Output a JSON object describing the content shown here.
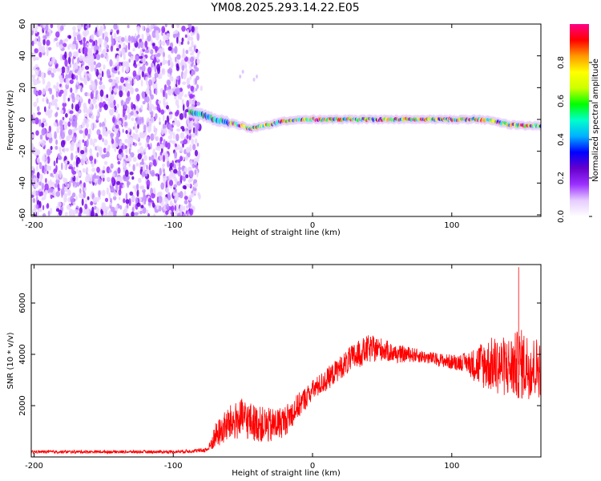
{
  "title": "YM08.2025.293.14.22.E05",
  "colors": {
    "axis": "#000000",
    "snr_line": "#ff0000",
    "background": "#ffffff"
  },
  "chart_data": [
    {
      "type": "heatmap",
      "name": "spectrogram",
      "xlabel": "Height of straight line (km)",
      "ylabel": "Frequency (Hz)",
      "xlim": [
        -202,
        164
      ],
      "ylim": [
        -61,
        60
      ],
      "xticks": [
        -200,
        -100,
        0,
        100
      ],
      "yticks": [
        60,
        40,
        20,
        0,
        -20,
        -40,
        -60
      ],
      "noise_region_x": [
        -202,
        -82
      ],
      "signal_track": {
        "x": [
          -88,
          -80,
          -70,
          -60,
          -50,
          -45,
          -40,
          -30,
          -20,
          -10,
          0,
          20,
          40,
          60,
          80,
          100,
          120,
          130,
          140,
          150,
          160,
          164
        ],
        "y": [
          5,
          3,
          0,
          -2,
          -4,
          -6,
          -5,
          -3,
          -1,
          0,
          0,
          0,
          0,
          0,
          0,
          0,
          0,
          -1,
          -3,
          -4,
          -4,
          -4
        ]
      },
      "colorbar": {
        "label": "Normalized spectral amplitude",
        "ticks": [
          "0.0",
          "0.2",
          "0.4",
          "0.6",
          "0.8"
        ],
        "tick_values": [
          0.0,
          0.2,
          0.4,
          0.6,
          0.8
        ],
        "range": [
          0,
          1
        ],
        "colors": [
          "#ffffff",
          "#e6ccff",
          "#9b30ff",
          "#6600cc",
          "#0000ff",
          "#00b0ff",
          "#00ffcc",
          "#00ff00",
          "#ccff00",
          "#ffff00",
          "#ff9900",
          "#ff0000",
          "#ff0088"
        ]
      }
    },
    {
      "type": "line",
      "name": "snr",
      "xlabel": "Height of straight line (km)",
      "ylabel": "SNR (10 * v/v)",
      "xlim": [
        -202,
        164
      ],
      "ylim": [
        0,
        7500
      ],
      "xticks": [
        -200,
        -100,
        0,
        100
      ],
      "yticks": [
        2000,
        4000,
        6000
      ],
      "envelope": {
        "x": [
          -202,
          -100,
          -80,
          -75,
          -70,
          -60,
          -50,
          -40,
          -30,
          -20,
          -10,
          0,
          10,
          20,
          30,
          40,
          50,
          60,
          70,
          80,
          90,
          100,
          110,
          115,
          120,
          130,
          140,
          150,
          160,
          164
        ],
        "mean": [
          200,
          200,
          250,
          300,
          800,
          1300,
          1500,
          1300,
          1200,
          1400,
          2000,
          2600,
          3000,
          3500,
          3900,
          4200,
          4200,
          4000,
          4000,
          3900,
          3800,
          3700,
          3700,
          3600,
          3600,
          3600,
          3500,
          3600,
          3500,
          3500
        ],
        "spread": [
          60,
          60,
          80,
          100,
          500,
          700,
          800,
          700,
          700,
          600,
          500,
          400,
          450,
          450,
          550,
          550,
          450,
          350,
          300,
          250,
          250,
          300,
          350,
          600,
          900,
          1100,
          1200,
          1400,
          1200,
          1200
        ]
      },
      "peak_max": 7400
    }
  ]
}
